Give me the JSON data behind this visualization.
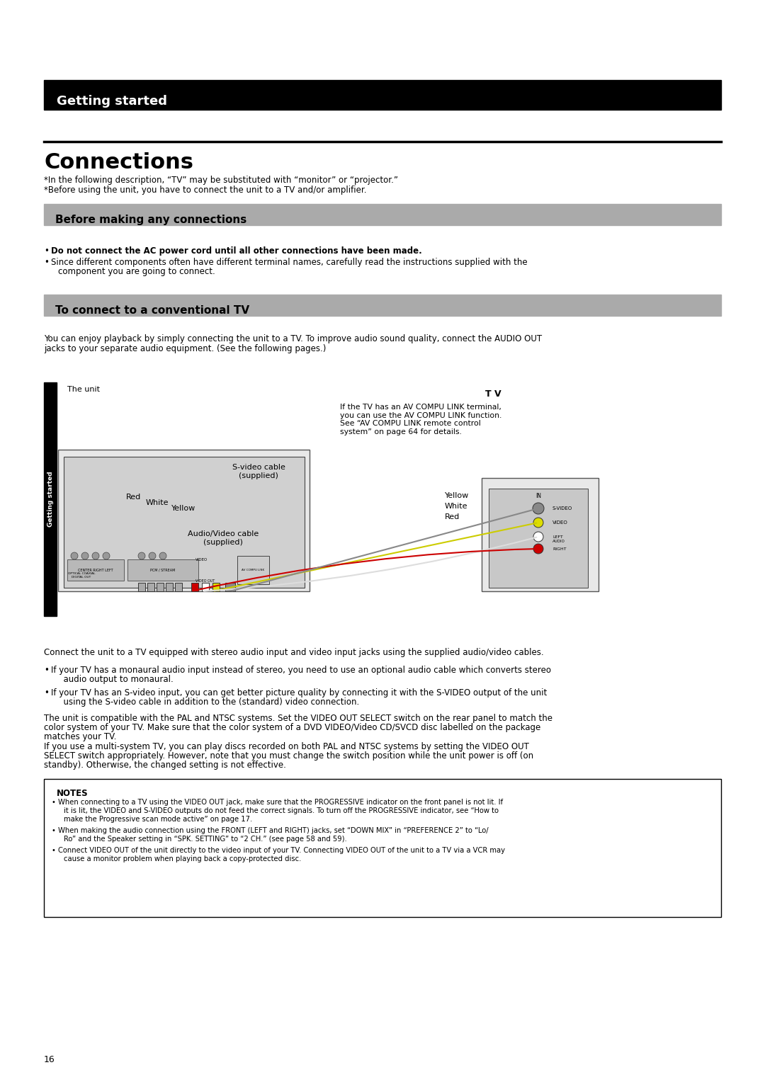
{
  "page_bg": "#ffffff",
  "page_number": "16",
  "getting_started_header": "Getting started",
  "header_bg": "#000000",
  "header_text_color": "#ffffff",
  "connections_title": "Connections",
  "connections_title_color": "#000000",
  "connections_title_size": 22,
  "divider_color": "#000000",
  "subtitle1": "Before making any connections",
  "subtitle2": "To connect to a conventional TV",
  "subtitle_bg": "#aaaaaa",
  "subtitle_text_color": "#000000",
  "sidebar_label": "Getting started",
  "sidebar_bg": "#000000",
  "sidebar_text_color": "#ffffff",
  "intro_lines": [
    "*In the following description, “TV” may be substituted with “monitor” or “projector.”",
    "*Before using the unit, you have to connect the unit to a TV and/or amplifier."
  ],
  "bullet1_bold": "Do not connect the AC power cord until all other connections have been made.",
  "bullet2": "Since different components often have different terminal names, carefully read the instructions supplied with the\n  component you are going to connect.",
  "connect_tv_para": "You can enjoy playback by simply connecting the unit to a TV. To improve audio sound quality, connect the AUDIO OUT\njacks to your separate audio equipment. (See the following pages.)",
  "unit_label": "The unit",
  "tv_label": "T V",
  "red_label": "Red",
  "white_label": "White",
  "yellow_label": "Yellow",
  "svideo_label": "S-video cable\n(supplied)",
  "avideo_label": "Audio/Video cable\n(supplied)",
  "yellow2_label": "Yellow",
  "white2_label": "White",
  "red2_label": "Red",
  "av_compu_text": "If the TV has an AV COMPU LINK terminal,\nyou can use the AV COMPU LINK function.\nSee “AV COMPU LINK remote control\nsystem” on page 64 for details.",
  "connect_para": "Connect the unit to a TV equipped with stereo audio input and video input jacks using the supplied audio/video cables.",
  "bullet_if1": "If your TV has a monaural audio input instead of stereo, you need to use an optional audio cable which converts stereo\n  audio output to monaural.",
  "bullet_if2": "If your TV has an S-video input, you can get better picture quality by connecting it with the S-VIDEO output of the unit\n  using the S-video cable in addition to the (standard) video connection.",
  "pal_ntsc_para1": "The unit is compatible with the PAL and NTSC systems. Set the VIDEO OUT SELECT switch on the rear panel to match the\ncolor system of your TV. Make sure that the color system of a DVD VIDEO/Video CD/SVCD disc labelled on the package\nmatches your TV.",
  "pal_ntsc_para2": "If you use a multi-system TV, you can play discs recorded on both PAL and NTSC systems by setting the VIDEO OUT\nSELECT switch appropriately. However, note that you must change the switch position while the unit power is off (on\nstandby). Otherwise, the changed setting is not effective.",
  "notes_header": "NOTES",
  "note1": "When connecting to a TV using the VIDEO OUT jack, make sure that the PROGRESSIVE indicator on the front panel is not lit. If\n        it is lit, the VIDEO and S-VIDEO outputs do not feed the correct signals. To turn off the PROGRESSIVE indicator, see “How to\n        make the Progressive scan mode active” on page 17.",
  "note2": "When making the audio connection using the FRONT (LEFT and RIGHT) jacks, set “DOWN MIX” in “PREFERENCE 2” to “Lo/\n        Ro” and the Speaker setting in “SPK. SETTING” to “2 CH.” (see page 58 and 59).",
  "note3": "Connect VIDEO OUT of the unit directly to the video input of your TV. Connecting VIDEO OUT of the unit to a TV via a VCR may\n        cause a monitor problem when playing back a copy-protected disc.",
  "body_text_size": 8.5,
  "small_text_size": 7.5,
  "notes_text_size": 7.2,
  "note_border_color": "#000000",
  "note_bg": "#ffffff"
}
